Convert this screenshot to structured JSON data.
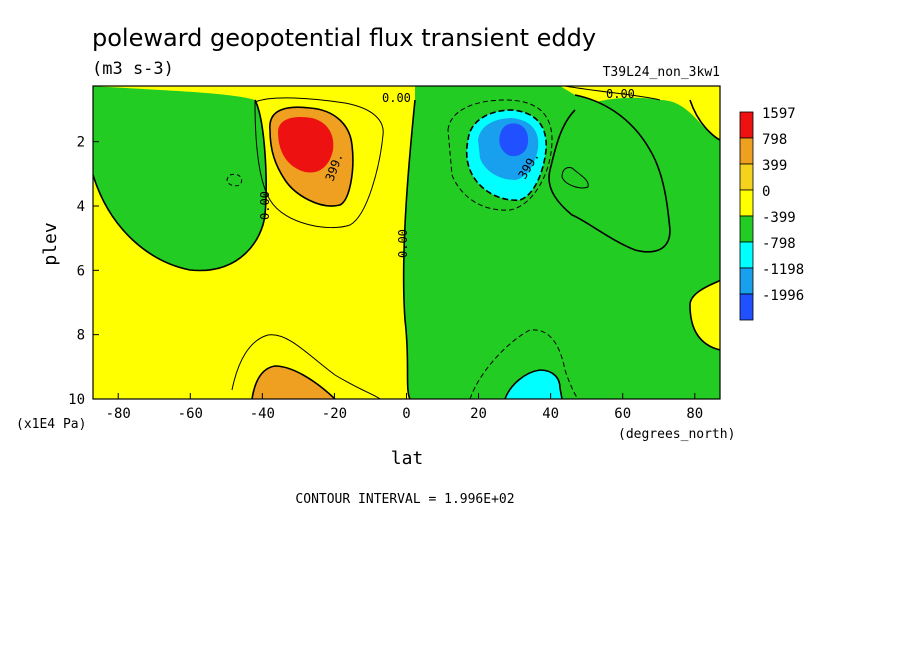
{
  "chart_data": {
    "type": "heatmap",
    "title": "poleward geopotential flux transient eddy",
    "units": "(m3 s-3)",
    "experiment": "T39L24_non_3kw1",
    "xlabel": "lat",
    "x_units": "(degrees_north)",
    "ylabel": "plev",
    "y_units": "(x1E4 Pa)",
    "xlim": [
      -87,
      87
    ],
    "ylim": [
      10,
      0.27
    ],
    "x_ticks": [
      "-80",
      "-60",
      "-40",
      "-20",
      "0",
      "20",
      "40",
      "60",
      "80"
    ],
    "y_ticks": [
      "2",
      "4",
      "6",
      "8",
      "10"
    ],
    "contour_interval": "CONTOUR INTERVAL = 1.996E+02",
    "contour_labels": [
      "0.00",
      "0.00",
      "0.00",
      "0.00",
      "399.",
      "399."
    ],
    "legend": [
      {
        "label": "1597",
        "color": "#ee1111"
      },
      {
        "label": "798",
        "color": "#f0a020"
      },
      {
        "label": "399",
        "color": "#f5d21e"
      },
      {
        "label": "0",
        "color": "#ffff00"
      },
      {
        "label": "-399",
        "color": "#22cc22"
      },
      {
        "label": "-798",
        "color": "#00ffff"
      },
      {
        "label": "-1198",
        "color": "#18a0ee"
      },
      {
        "label": "-1996",
        "color": "#2050ff"
      }
    ],
    "features": [
      {
        "name": "southern maximum",
        "lat": -30,
        "plev": 1.8,
        "value": 1800
      },
      {
        "name": "northern minimum",
        "lat": 30,
        "plev": 1.8,
        "value": -2000
      },
      {
        "name": "southern low-level maximum",
        "lat": -35,
        "plev": 9.6,
        "value": 700
      },
      {
        "name": "northern low-level minimum",
        "lat": 33,
        "plev": 9.6,
        "value": -700
      }
    ]
  }
}
